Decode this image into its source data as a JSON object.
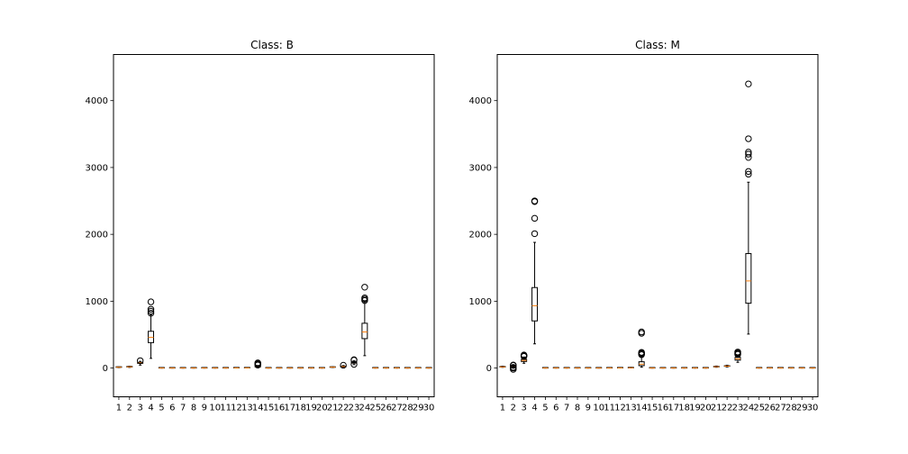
{
  "chart_data": [
    {
      "type": "box",
      "title": "Class: B",
      "ylim": [
        -430,
        4690
      ],
      "yticks": [
        0,
        1000,
        2000,
        3000,
        4000
      ],
      "categories": [
        "1",
        "2",
        "3",
        "4",
        "5",
        "6",
        "7",
        "8",
        "9",
        "10",
        "11",
        "12",
        "13",
        "14",
        "15",
        "16",
        "17",
        "18",
        "19",
        "20",
        "21",
        "22",
        "23",
        "24",
        "25",
        "26",
        "27",
        "28",
        "29",
        "30"
      ],
      "boxes": [
        {
          "q1": 11,
          "median": 12,
          "q3": 14,
          "whislo": 7,
          "whishi": 17,
          "fliers": []
        },
        {
          "q1": 16,
          "median": 18,
          "q3": 20,
          "whislo": 10,
          "whishi": 26,
          "fliers": []
        },
        {
          "q1": 70,
          "median": 78,
          "q3": 84,
          "whislo": 44,
          "whishi": 100,
          "fliers": [
            110
          ]
        },
        {
          "q1": 380,
          "median": 460,
          "q3": 550,
          "whislo": 145,
          "whishi": 800,
          "fliers": [
            820,
            850,
            880,
            990
          ]
        },
        {
          "q1": 0.09,
          "median": 0.09,
          "q3": 0.1,
          "whislo": 0.05,
          "whishi": 0.13,
          "fliers": []
        },
        {
          "q1": 0.06,
          "median": 0.08,
          "q3": 0.1,
          "whislo": 0.02,
          "whishi": 0.15,
          "fliers": []
        },
        {
          "q1": 0.02,
          "median": 0.04,
          "q3": 0.06,
          "whislo": 0,
          "whishi": 0.12,
          "fliers": []
        },
        {
          "q1": 0.02,
          "median": 0.02,
          "q3": 0.03,
          "whislo": 0,
          "whishi": 0.05,
          "fliers": []
        },
        {
          "q1": 0.16,
          "median": 0.17,
          "q3": 0.19,
          "whislo": 0.12,
          "whishi": 0.23,
          "fliers": []
        },
        {
          "q1": 0.06,
          "median": 0.06,
          "q3": 0.07,
          "whislo": 0.05,
          "whishi": 0.08,
          "fliers": []
        },
        {
          "q1": 0.2,
          "median": 0.26,
          "q3": 0.34,
          "whislo": 0.1,
          "whishi": 0.55,
          "fliers": []
        },
        {
          "q1": 0.9,
          "median": 1.1,
          "q3": 1.4,
          "whislo": 0.4,
          "whishi": 2.2,
          "fliers": []
        },
        {
          "q1": 1.4,
          "median": 1.9,
          "q3": 2.4,
          "whislo": 0.8,
          "whishi": 3.8,
          "fliers": []
        },
        {
          "q1": 15,
          "median": 19,
          "q3": 24,
          "whislo": 6,
          "whishi": 38,
          "fliers": [
            45,
            55,
            70,
            77
          ]
        },
        {
          "q1": 0.005,
          "median": 0.007,
          "q3": 0.009,
          "whislo": 0.002,
          "whishi": 0.014,
          "fliers": []
        },
        {
          "q1": 0.01,
          "median": 0.02,
          "q3": 0.03,
          "whislo": 0,
          "whishi": 0.06,
          "fliers": []
        },
        {
          "q1": 0.01,
          "median": 0.02,
          "q3": 0.03,
          "whislo": 0,
          "whishi": 0.07,
          "fliers": []
        },
        {
          "q1": 0.007,
          "median": 0.01,
          "q3": 0.013,
          "whislo": 0,
          "whishi": 0.02,
          "fliers": []
        },
        {
          "q1": 0.016,
          "median": 0.019,
          "q3": 0.023,
          "whislo": 0.008,
          "whishi": 0.033,
          "fliers": []
        },
        {
          "q1": 0.002,
          "median": 0.003,
          "q3": 0.004,
          "whislo": 0.001,
          "whishi": 0.006,
          "fliers": []
        },
        {
          "q1": 11,
          "median": 13,
          "q3": 15,
          "whislo": 8,
          "whishi": 19,
          "fliers": []
        },
        {
          "q1": 19,
          "median": 22,
          "q3": 27,
          "whislo": 12,
          "whishi": 38,
          "fliers": [
            42
          ]
        },
        {
          "q1": 73,
          "median": 80,
          "q3": 90,
          "whislo": 50,
          "whishi": 110,
          "fliers": [
            55,
            118,
            125
          ]
        },
        {
          "q1": 440,
          "median": 540,
          "q3": 670,
          "whislo": 185,
          "whishi": 1000,
          "fliers": [
            1010,
            1030,
            1050,
            1210
          ]
        },
        {
          "q1": 0.11,
          "median": 0.13,
          "q3": 0.14,
          "whislo": 0.07,
          "whishi": 0.2,
          "fliers": []
        },
        {
          "q1": 0.11,
          "median": 0.17,
          "q3": 0.23,
          "whislo": 0.03,
          "whishi": 0.4,
          "fliers": []
        },
        {
          "q1": 0.08,
          "median": 0.14,
          "q3": 0.22,
          "whislo": 0,
          "whishi": 0.45,
          "fliers": []
        },
        {
          "q1": 0.05,
          "median": 0.07,
          "q3": 0.1,
          "whislo": 0,
          "whishi": 0.16,
          "fliers": []
        },
        {
          "q1": 0.24,
          "median": 0.27,
          "q3": 0.3,
          "whislo": 0.16,
          "whishi": 0.39,
          "fliers": []
        },
        {
          "q1": 0.07,
          "median": 0.08,
          "q3": 0.09,
          "whislo": 0.06,
          "whishi": 0.11,
          "fliers": []
        }
      ]
    },
    {
      "type": "box",
      "title": "Class: M",
      "ylim": [
        -430,
        4690
      ],
      "yticks": [
        0,
        1000,
        2000,
        3000,
        4000
      ],
      "categories": [
        "1",
        "2",
        "3",
        "4",
        "5",
        "6",
        "7",
        "8",
        "9",
        "10",
        "11",
        "12",
        "13",
        "14",
        "15",
        "16",
        "17",
        "18",
        "19",
        "20",
        "21",
        "22",
        "23",
        "24",
        "25",
        "26",
        "27",
        "28",
        "29",
        "30"
      ],
      "boxes": [
        {
          "q1": 15,
          "median": 17,
          "q3": 19,
          "whislo": 11,
          "whishi": 27,
          "fliers": []
        },
        {
          "q1": 19,
          "median": 21,
          "q3": 23,
          "whislo": 11,
          "whishi": 30,
          "fliers": [
            -20,
            0,
            10,
            40,
            45
          ]
        },
        {
          "q1": 98,
          "median": 114,
          "q3": 130,
          "whislo": 71,
          "whishi": 165,
          "fliers": [
            175,
            185,
            190,
            195
          ]
        },
        {
          "q1": 705,
          "median": 932,
          "q3": 1204,
          "whislo": 362,
          "whishi": 1880,
          "fliers": [
            2010,
            2240,
            2490,
            2500
          ]
        },
        {
          "q1": 0.09,
          "median": 0.1,
          "q3": 0.11,
          "whislo": 0.07,
          "whishi": 0.14,
          "fliers": []
        },
        {
          "q1": 0.11,
          "median": 0.13,
          "q3": 0.17,
          "whislo": 0.05,
          "whishi": 0.26,
          "fliers": []
        },
        {
          "q1": 0.1,
          "median": 0.15,
          "q3": 0.2,
          "whislo": 0.02,
          "whishi": 0.35,
          "fliers": []
        },
        {
          "q1": 0.06,
          "median": 0.09,
          "q3": 0.1,
          "whislo": 0.02,
          "whishi": 0.16,
          "fliers": []
        },
        {
          "q1": 0.17,
          "median": 0.19,
          "q3": 0.21,
          "whislo": 0.13,
          "whishi": 0.26,
          "fliers": []
        },
        {
          "q1": 0.06,
          "median": 0.06,
          "q3": 0.07,
          "whislo": 0.05,
          "whishi": 0.08,
          "fliers": []
        },
        {
          "q1": 0.4,
          "median": 0.55,
          "q3": 0.8,
          "whislo": 0.2,
          "whishi": 1.4,
          "fliers": []
        },
        {
          "q1": 0.9,
          "median": 1.1,
          "q3": 1.4,
          "whislo": 0.4,
          "whishi": 2.1,
          "fliers": []
        },
        {
          "q1": 2.7,
          "median": 3.7,
          "q3": 5.5,
          "whislo": 1.3,
          "whishi": 9.5,
          "fliers": []
        },
        {
          "q1": 36,
          "median": 58,
          "q3": 94,
          "whislo": 13,
          "whishi": 170,
          "fliers": [
            200,
            215,
            225,
            235,
            520,
            540
          ]
        },
        {
          "q1": 0.005,
          "median": 0.006,
          "q3": 0.008,
          "whislo": 0.002,
          "whishi": 0.012,
          "fliers": []
        },
        {
          "q1": 0.02,
          "median": 0.03,
          "q3": 0.04,
          "whislo": 0.01,
          "whishi": 0.07,
          "fliers": []
        },
        {
          "q1": 0.03,
          "median": 0.04,
          "q3": 0.05,
          "whislo": 0.01,
          "whishi": 0.09,
          "fliers": []
        },
        {
          "q1": 0.011,
          "median": 0.014,
          "q3": 0.017,
          "whislo": 0.006,
          "whishi": 0.025,
          "fliers": []
        },
        {
          "q1": 0.015,
          "median": 0.018,
          "q3": 0.022,
          "whislo": 0.008,
          "whishi": 0.032,
          "fliers": []
        },
        {
          "q1": 0.003,
          "median": 0.004,
          "q3": 0.005,
          "whislo": 0.001,
          "whishi": 0.008,
          "fliers": []
        },
        {
          "q1": 17,
          "median": 20,
          "q3": 23,
          "whislo": 12,
          "whishi": 30,
          "fliers": []
        },
        {
          "q1": 26,
          "median": 29,
          "q3": 32,
          "whislo": 17,
          "whishi": 42,
          "fliers": []
        },
        {
          "q1": 118,
          "median": 138,
          "q3": 160,
          "whislo": 85,
          "whishi": 195,
          "fliers": [
            205,
            215,
            225,
            240
          ]
        },
        {
          "q1": 970,
          "median": 1303,
          "q3": 1712,
          "whislo": 508,
          "whishi": 2780,
          "fliers": [
            2900,
            2940,
            3150,
            3200,
            3230,
            3430,
            4250
          ]
        },
        {
          "q1": 0.13,
          "median": 0.14,
          "q3": 0.16,
          "whislo": 0.09,
          "whishi": 0.2,
          "fliers": []
        },
        {
          "q1": 0.24,
          "median": 0.36,
          "q3": 0.45,
          "whislo": 0.05,
          "whishi": 0.8,
          "fliers": []
        },
        {
          "q1": 0.32,
          "median": 0.4,
          "q3": 0.55,
          "whislo": 0.05,
          "whishi": 0.9,
          "fliers": []
        },
        {
          "q1": 0.15,
          "median": 0.18,
          "q3": 0.21,
          "whislo": 0.06,
          "whishi": 0.29,
          "fliers": []
        },
        {
          "q1": 0.28,
          "median": 0.31,
          "q3": 0.36,
          "whislo": 0.16,
          "whishi": 0.48,
          "fliers": []
        },
        {
          "q1": 0.08,
          "median": 0.09,
          "q3": 0.1,
          "whislo": 0.06,
          "whishi": 0.13,
          "fliers": []
        }
      ]
    }
  ],
  "colors": {
    "box": "#000000",
    "median": "#ff7f0e",
    "axes": "#000000",
    "background": "#ffffff"
  }
}
